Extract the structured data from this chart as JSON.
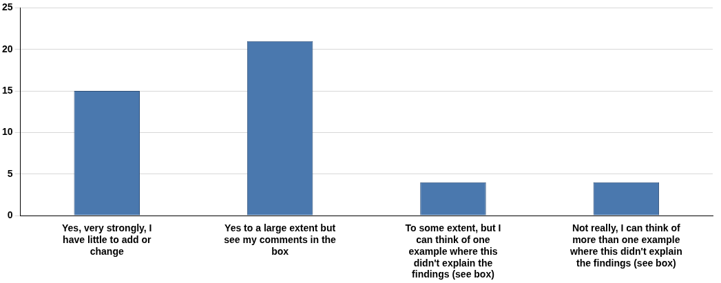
{
  "chart_data": {
    "type": "bar",
    "categories": [
      "Yes, very strongly, I have little to add or change",
      "Yes to a large extent but see my comments in the box",
      "To some extent, but I can think of one example where this didn't explain the findings (see box)",
      "Not really, I can think of more than one example where this didn't explain the findings (see box)"
    ],
    "values": [
      15,
      21,
      4,
      4
    ],
    "color": "#4a78ae",
    "ylim": [
      0,
      25
    ],
    "yticks": [
      0,
      5,
      10,
      15,
      20,
      25
    ],
    "grid": "y"
  }
}
